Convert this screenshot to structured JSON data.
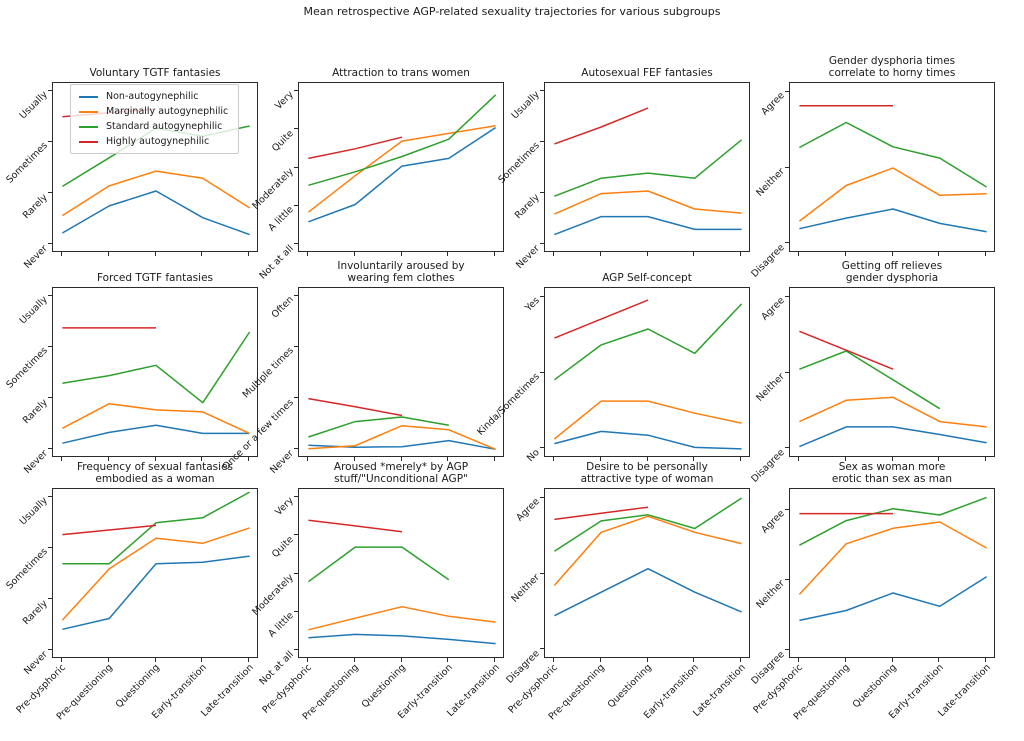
{
  "figure": {
    "title": "Mean retrospective AGP-related sexuality trajectories for various subgroups",
    "background": "#ffffff",
    "text_color": "#1a1a1a",
    "x_categories": [
      "Pre-dysphoric",
      "Pre-questioning",
      "Questioning",
      "Early-transition",
      "Late-transition"
    ]
  },
  "legend": {
    "location": "upper left of first subplot",
    "entries": [
      {
        "label": "Non-autogynephilic",
        "color": "#1f77b4"
      },
      {
        "label": "Marginally autogynephilic",
        "color": "#ff7f0e"
      },
      {
        "label": "Standard autogynephilic",
        "color": "#2ca02c"
      },
      {
        "label": "Highly autogynephilic",
        "color": "#d62728"
      }
    ]
  },
  "chart_data": [
    {
      "type": "line",
      "row": 0,
      "col": 0,
      "title": "Voluntary TGTF fantasies",
      "title_lines": [
        "Voluntary TGTF fantasies"
      ],
      "categories": [
        "Pre-dysphoric",
        "Pre-questioning",
        "Questioning",
        "Early-transition",
        "Late-transition"
      ],
      "ytick_labels": [
        "Never",
        "Rarely",
        "Sometimes",
        "Usually"
      ],
      "ytick_values": [
        0,
        1,
        2,
        3
      ],
      "ylim": [
        -0.16,
        3.16
      ],
      "series": [
        {
          "name": "Non-autogynephilic",
          "color": "#1f77b4",
          "values": [
            0.23,
            0.76,
            1.05,
            0.53,
            0.2
          ]
        },
        {
          "name": "Marginally autogynephilic",
          "color": "#ff7f0e",
          "values": [
            0.57,
            1.15,
            1.44,
            1.3,
            0.72
          ]
        },
        {
          "name": "Standard autogynephilic",
          "color": "#2ca02c",
          "values": [
            1.14,
            1.7,
            2.28,
            2.12,
            2.32
          ]
        },
        {
          "name": "Highly autogynephilic",
          "color": "#d62728",
          "values": [
            2.5,
            2.58,
            2.65,
            null,
            null
          ]
        }
      ]
    },
    {
      "type": "line",
      "row": 0,
      "col": 1,
      "title": "Attraction to trans women",
      "title_lines": [
        "Attraction to trans women"
      ],
      "categories": [
        "Pre-dysphoric",
        "Pre-questioning",
        "Questioning",
        "Early-transition",
        "Late-transition"
      ],
      "ytick_labels": [
        "Not at all",
        "A little",
        "Moderately",
        "Quite",
        "Very"
      ],
      "ytick_values": [
        0,
        1,
        2,
        3,
        4
      ],
      "ylim": [
        -0.21,
        4.21
      ],
      "series": [
        {
          "name": "Non-autogynephilic",
          "color": "#1f77b4",
          "values": [
            0.6,
            1.05,
            2.05,
            2.25,
            3.05
          ]
        },
        {
          "name": "Marginally autogynephilic",
          "color": "#ff7f0e",
          "values": [
            0.85,
            1.8,
            2.7,
            2.9,
            3.1
          ]
        },
        {
          "name": "Standard autogynephilic",
          "color": "#2ca02c",
          "values": [
            1.55,
            1.9,
            2.3,
            2.75,
            3.9
          ]
        },
        {
          "name": "Highly autogynephilic",
          "color": "#d62728",
          "values": [
            2.25,
            2.5,
            2.8,
            null,
            null
          ]
        }
      ]
    },
    {
      "type": "line",
      "row": 0,
      "col": 2,
      "title": "Autosexual FEF fantasies",
      "title_lines": [
        "Autosexual FEF fantasies"
      ],
      "categories": [
        "Pre-dysphoric",
        "Pre-questioning",
        "Questioning",
        "Early-transition",
        "Late-transition"
      ],
      "ytick_labels": [
        "Never",
        "Rarely",
        "Sometimes",
        "Usually"
      ],
      "ytick_values": [
        0,
        1,
        2,
        3
      ],
      "ylim": [
        -0.16,
        3.16
      ],
      "series": [
        {
          "name": "Non-autogynephilic",
          "color": "#1f77b4",
          "values": [
            0.2,
            0.55,
            0.55,
            0.3,
            0.3
          ]
        },
        {
          "name": "Marginally autogynephilic",
          "color": "#ff7f0e",
          "values": [
            0.6,
            1.0,
            1.05,
            0.7,
            0.62
          ]
        },
        {
          "name": "Standard autogynephilic",
          "color": "#2ca02c",
          "values": [
            0.95,
            1.3,
            1.4,
            1.3,
            2.05
          ]
        },
        {
          "name": "Highly autogynephilic",
          "color": "#d62728",
          "values": [
            1.97,
            2.3,
            2.67,
            null,
            null
          ]
        }
      ]
    },
    {
      "type": "line",
      "row": 0,
      "col": 3,
      "title": "Gender dysphoria times correlate to horny times",
      "title_lines": [
        "Gender dysphoria times",
        "correlate to horny times"
      ],
      "categories": [
        "Pre-dysphoric",
        "Pre-questioning",
        "Questioning",
        "Early-transition",
        "Late-transition"
      ],
      "ytick_labels": [
        "Disagree",
        "Neither",
        "Agree"
      ],
      "ytick_values": [
        0,
        1,
        2
      ],
      "ylim": [
        -0.12,
        2.12
      ],
      "series": [
        {
          "name": "Non-autogynephilic",
          "color": "#1f77b4",
          "values": [
            0.2,
            0.34,
            0.46,
            0.27,
            0.16
          ]
        },
        {
          "name": "Marginally autogynephilic",
          "color": "#ff7f0e",
          "values": [
            0.3,
            0.77,
            1.0,
            0.64,
            0.66
          ]
        },
        {
          "name": "Standard autogynephilic",
          "color": "#2ca02c",
          "values": [
            1.27,
            1.6,
            1.28,
            1.13,
            0.75
          ]
        },
        {
          "name": "Highly autogynephilic",
          "color": "#d62728",
          "values": [
            1.82,
            1.82,
            1.82,
            null,
            null
          ]
        }
      ]
    },
    {
      "type": "line",
      "row": 1,
      "col": 0,
      "title": "Forced TGTF fantasies",
      "title_lines": [
        "Forced TGTF fantasies"
      ],
      "categories": [
        "Pre-dysphoric",
        "Pre-questioning",
        "Questioning",
        "Early-transition",
        "Late-transition"
      ],
      "ytick_labels": [
        "Never",
        "Rarely",
        "Sometimes",
        "Usually"
      ],
      "ytick_values": [
        0,
        1,
        2,
        3
      ],
      "ylim": [
        -0.16,
        3.16
      ],
      "series": [
        {
          "name": "Non-autogynephilic",
          "color": "#1f77b4",
          "values": [
            0.13,
            0.34,
            0.48,
            0.32,
            0.32
          ]
        },
        {
          "name": "Marginally autogynephilic",
          "color": "#ff7f0e",
          "values": [
            0.42,
            0.9,
            0.78,
            0.74,
            0.32
          ]
        },
        {
          "name": "Standard autogynephilic",
          "color": "#2ca02c",
          "values": [
            1.3,
            1.45,
            1.65,
            0.92,
            2.3
          ]
        },
        {
          "name": "Highly autogynephilic",
          "color": "#d62728",
          "values": [
            2.38,
            2.38,
            2.38,
            null,
            null
          ]
        }
      ]
    },
    {
      "type": "line",
      "row": 1,
      "col": 1,
      "title": "Involuntarily aroused by wearing fem clothes",
      "title_lines": [
        "Involuntarily aroused by",
        "wearing fem clothes"
      ],
      "categories": [
        "Pre-dysphoric",
        "Pre-questioning",
        "Questioning",
        "Early-transition",
        "Late-transition"
      ],
      "ytick_labels": [
        "Never",
        "Once or a few times",
        "Multiple times",
        "Often"
      ],
      "ytick_values": [
        0,
        1,
        2,
        3
      ],
      "ylim": [
        -0.16,
        3.16
      ],
      "series": [
        {
          "name": "Non-autogynephilic",
          "color": "#1f77b4",
          "values": [
            0.09,
            0.05,
            0.06,
            0.18,
            0.01
          ]
        },
        {
          "name": "Marginally autogynephilic",
          "color": "#ff7f0e",
          "values": [
            0.02,
            0.08,
            0.47,
            0.39,
            0.01
          ]
        },
        {
          "name": "Standard autogynephilic",
          "color": "#2ca02c",
          "values": [
            0.25,
            0.55,
            0.64,
            0.48,
            null
          ]
        },
        {
          "name": "Highly autogynephilic",
          "color": "#d62728",
          "values": [
            1.0,
            0.84,
            0.67,
            null,
            null
          ]
        }
      ]
    },
    {
      "type": "line",
      "row": 1,
      "col": 2,
      "title": "AGP Self-concept",
      "title_lines": [
        "AGP Self-concept"
      ],
      "categories": [
        "Pre-dysphoric",
        "Pre-questioning",
        "Questioning",
        "Early-transition",
        "Late-transition"
      ],
      "ytick_labels": [
        "No",
        "Kinda/Sometimes",
        "Yes"
      ],
      "ytick_values": [
        0,
        1,
        2
      ],
      "ylim": [
        -0.12,
        2.12
      ],
      "series": [
        {
          "name": "Non-autogynephilic",
          "color": "#1f77b4",
          "values": [
            0.07,
            0.23,
            0.18,
            0.02,
            0.0
          ]
        },
        {
          "name": "Marginally autogynephilic",
          "color": "#ff7f0e",
          "values": [
            0.13,
            0.63,
            0.63,
            0.47,
            0.34
          ]
        },
        {
          "name": "Standard autogynephilic",
          "color": "#2ca02c",
          "values": [
            0.91,
            1.37,
            1.58,
            1.26,
            1.91
          ]
        },
        {
          "name": "Highly autogynephilic",
          "color": "#d62728",
          "values": [
            1.46,
            1.71,
            1.96,
            null,
            null
          ]
        }
      ]
    },
    {
      "type": "line",
      "row": 1,
      "col": 3,
      "title": "Getting off relieves gender dysphoria",
      "title_lines": [
        "Getting off relieves",
        "gender dysphoria"
      ],
      "categories": [
        "Pre-dysphoric",
        "Pre-questioning",
        "Questioning",
        "Early-transition",
        "Late-transition"
      ],
      "ytick_labels": [
        "Disagree",
        "Neither",
        "Agree"
      ],
      "ytick_values": [
        0,
        1,
        2
      ],
      "ylim": [
        -0.12,
        2.12
      ],
      "series": [
        {
          "name": "Non-autogynephilic",
          "color": "#1f77b4",
          "values": [
            0.03,
            0.29,
            0.29,
            0.19,
            0.08
          ]
        },
        {
          "name": "Marginally autogynephilic",
          "color": "#ff7f0e",
          "values": [
            0.36,
            0.64,
            0.68,
            0.36,
            0.29
          ]
        },
        {
          "name": "Standard autogynephilic",
          "color": "#2ca02c",
          "values": [
            1.05,
            1.29,
            0.91,
            0.53,
            null
          ]
        },
        {
          "name": "Highly autogynephilic",
          "color": "#d62728",
          "values": [
            1.55,
            1.3,
            1.05,
            null,
            null
          ]
        }
      ]
    },
    {
      "type": "line",
      "row": 2,
      "col": 0,
      "title": "Frequency of sexual fantasies embodied as a woman",
      "title_lines": [
        "Frequency of sexual fantasies",
        "embodied as a woman"
      ],
      "categories": [
        "Pre-dysphoric",
        "Pre-questioning",
        "Questioning",
        "Early-transition",
        "Late-transition"
      ],
      "ytick_labels": [
        "Never",
        "Rarely",
        "Sometimes",
        "Usually"
      ],
      "ytick_values": [
        0,
        1,
        2,
        3
      ],
      "ylim": [
        -0.16,
        3.16
      ],
      "series": [
        {
          "name": "Non-autogynephilic",
          "color": "#1f77b4",
          "values": [
            0.42,
            0.63,
            1.7,
            1.73,
            1.85
          ]
        },
        {
          "name": "Marginally autogynephilic",
          "color": "#ff7f0e",
          "values": [
            0.6,
            1.6,
            2.2,
            2.1,
            2.4
          ]
        },
        {
          "name": "Standard autogynephilic",
          "color": "#2ca02c",
          "values": [
            1.7,
            1.7,
            2.5,
            2.6,
            3.1
          ]
        },
        {
          "name": "Highly autogynephilic",
          "color": "#d62728",
          "values": [
            2.27,
            2.36,
            2.45,
            null,
            null
          ]
        }
      ]
    },
    {
      "type": "line",
      "row": 2,
      "col": 1,
      "title": "Aroused *merely* by AGP stuff/\"Unconditional AGP\"",
      "title_lines": [
        "Aroused *merely* by AGP",
        "stuff/\"Unconditional AGP\""
      ],
      "categories": [
        "Pre-dysphoric",
        "Pre-questioning",
        "Questioning",
        "Early-transition",
        "Late-transition"
      ],
      "ytick_labels": [
        "Not at all",
        "A little",
        "Moderately",
        "Quite",
        "Very"
      ],
      "ytick_values": [
        0,
        1,
        2,
        3,
        4
      ],
      "ylim": [
        -0.21,
        4.21
      ],
      "series": [
        {
          "name": "Non-autogynephilic",
          "color": "#1f77b4",
          "values": [
            0.34,
            0.43,
            0.39,
            0.3,
            0.19
          ]
        },
        {
          "name": "Marginally autogynephilic",
          "color": "#ff7f0e",
          "values": [
            0.55,
            0.85,
            1.15,
            0.9,
            0.75
          ]
        },
        {
          "name": "Standard autogynephilic",
          "color": "#2ca02c",
          "values": [
            1.8,
            2.7,
            2.7,
            1.85,
            null
          ]
        },
        {
          "name": "Highly autogynephilic",
          "color": "#d62728",
          "values": [
            3.4,
            3.25,
            3.1,
            null,
            null
          ]
        }
      ]
    },
    {
      "type": "line",
      "row": 2,
      "col": 2,
      "title": "Desire to be personally attractive type of woman",
      "title_lines": [
        "Desire to be personally",
        "attractive type of woman"
      ],
      "categories": [
        "Pre-dysphoric",
        "Pre-questioning",
        "Questioning",
        "Early-transition",
        "Late-transition"
      ],
      "ytick_labels": [
        "Disagree",
        "Neither",
        "Agree"
      ],
      "ytick_values": [
        0,
        1,
        2
      ],
      "ylim": [
        -0.12,
        2.12
      ],
      "series": [
        {
          "name": "Non-autogynephilic",
          "color": "#1f77b4",
          "values": [
            0.45,
            0.76,
            1.07,
            0.76,
            0.5
          ]
        },
        {
          "name": "Marginally autogynephilic",
          "color": "#ff7f0e",
          "values": [
            0.85,
            1.55,
            1.76,
            1.55,
            1.4
          ]
        },
        {
          "name": "Standard autogynephilic",
          "color": "#2ca02c",
          "values": [
            1.3,
            1.7,
            1.78,
            1.6,
            2.0
          ]
        },
        {
          "name": "Highly autogynephilic",
          "color": "#d62728",
          "values": [
            1.72,
            1.8,
            1.88,
            null,
            null
          ]
        }
      ]
    },
    {
      "type": "line",
      "row": 2,
      "col": 3,
      "title": "Sex as woman more erotic than sex as man",
      "title_lines": [
        "Sex as woman more",
        "erotic than sex as man"
      ],
      "categories": [
        "Pre-dysphoric",
        "Pre-questioning",
        "Questioning",
        "Early-transition",
        "Late-transition"
      ],
      "ytick_labels": [
        "Disagree",
        "Neither",
        "Agree"
      ],
      "ytick_values": [
        0,
        1,
        2
      ],
      "ylim": [
        -0.12,
        2.3
      ],
      "series": [
        {
          "name": "Non-autogynephilic",
          "color": "#1f77b4",
          "values": [
            0.43,
            0.57,
            0.82,
            0.63,
            1.05
          ]
        },
        {
          "name": "Marginally autogynephilic",
          "color": "#ff7f0e",
          "values": [
            0.8,
            1.52,
            1.74,
            1.83,
            1.46
          ]
        },
        {
          "name": "Standard autogynephilic",
          "color": "#2ca02c",
          "values": [
            1.5,
            1.85,
            2.02,
            1.93,
            2.18
          ]
        },
        {
          "name": "Highly autogynephilic",
          "color": "#d62728",
          "values": [
            1.95,
            1.95,
            1.95,
            null,
            null
          ]
        }
      ]
    }
  ]
}
